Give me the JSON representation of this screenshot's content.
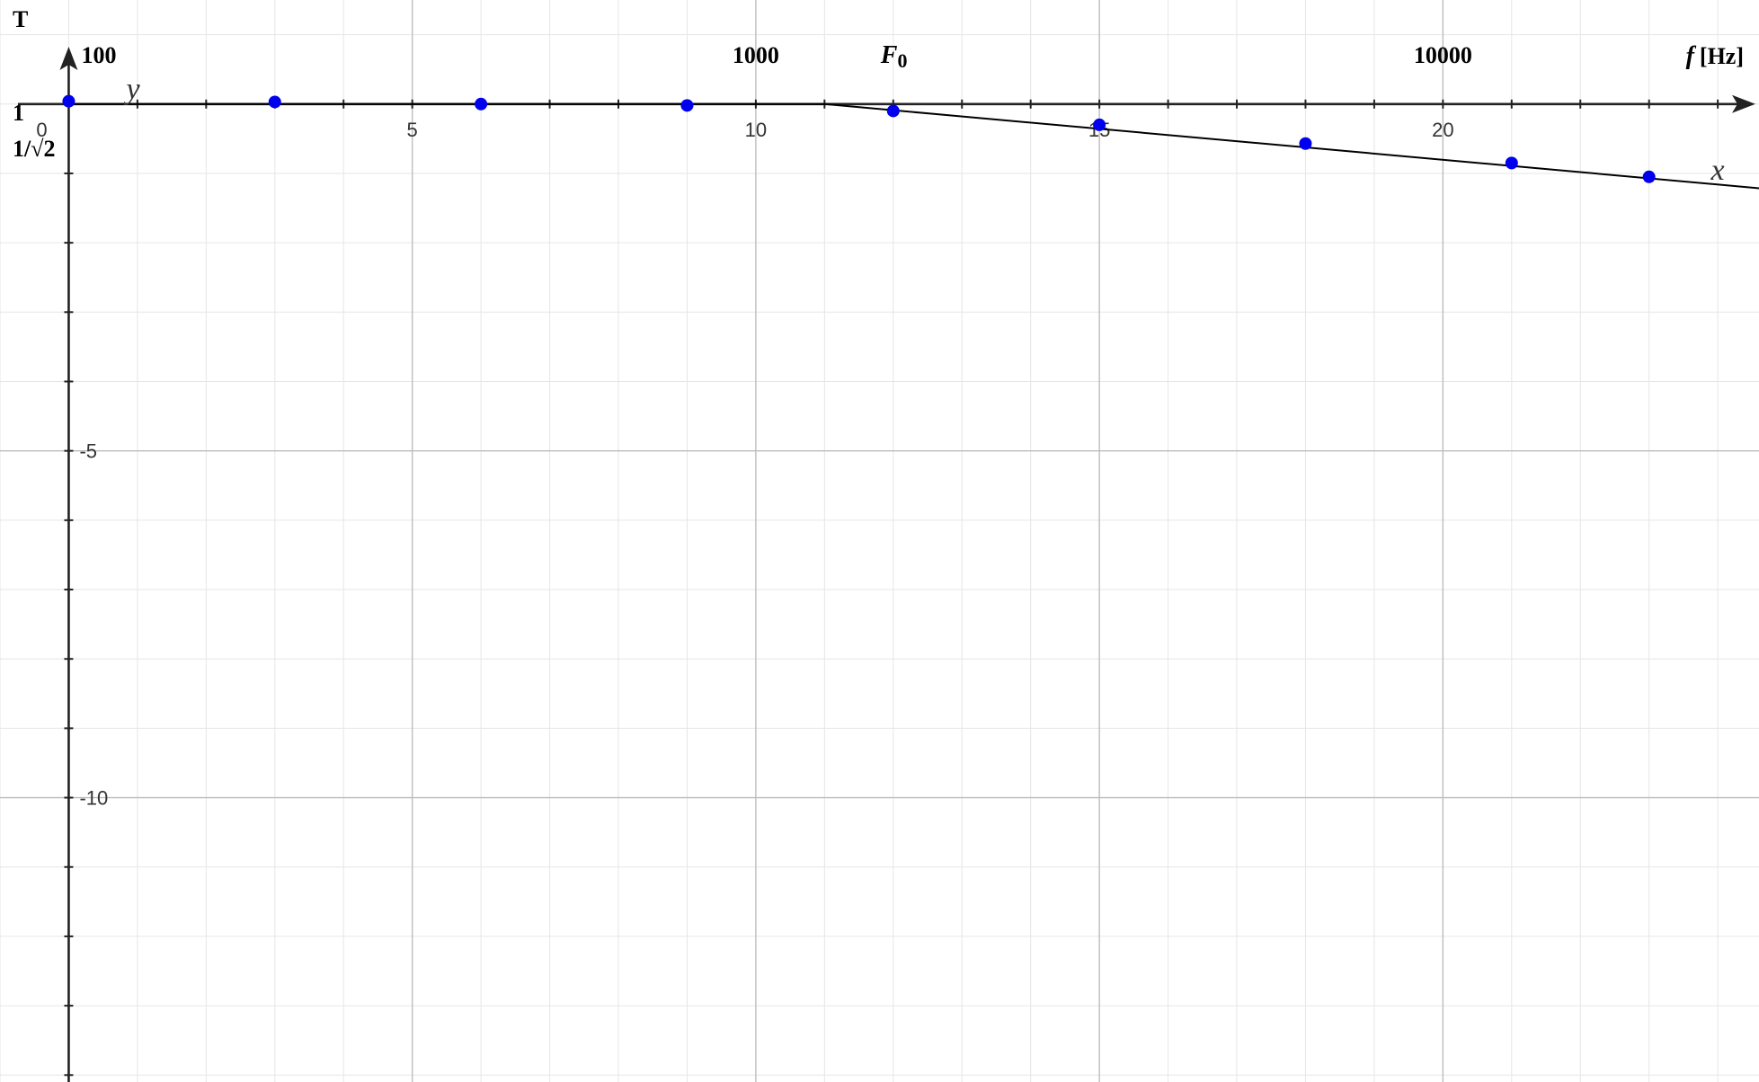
{
  "chart_data": {
    "type": "line",
    "title": "",
    "xlabel": "x",
    "ylabel": "y",
    "xlim": [
      -1,
      24.6
    ],
    "ylim": [
      -14.1,
      1.5
    ],
    "grid": true,
    "x_ticks": [
      0,
      5,
      10,
      15,
      20
    ],
    "x_tick_labels": [
      "0",
      "5",
      "10",
      "15",
      "20"
    ],
    "y_ticks": [
      -5,
      -10
    ],
    "y_tick_labels": [
      "-5",
      "-10"
    ],
    "annotations": {
      "t_label": "T",
      "one_label": "1",
      "inv_sqrt2_label": "1/√2",
      "f0_main": "F",
      "f0_sub": "0",
      "f_axis_label": "f",
      "f_axis_unit": "[Hz]",
      "freq_labels": [
        {
          "text": "100",
          "x": 0
        },
        {
          "text": "1000",
          "x": 10
        },
        {
          "text": "10000",
          "x": 20
        }
      ],
      "f0_x": 12
    },
    "series": [
      {
        "color": "#000000",
        "kind": "asymptote",
        "x": [
          0,
          11,
          25
        ],
        "y": [
          0,
          0,
          -1.25
        ]
      },
      {
        "color": "#0000ee",
        "kind": "points",
        "x": [
          0,
          3,
          6,
          9,
          12,
          15,
          18,
          21,
          23
        ],
        "y": [
          0.04,
          0.03,
          0.0,
          -0.02,
          -0.1,
          -0.3,
          -0.57,
          -0.85,
          -1.05
        ]
      }
    ]
  }
}
